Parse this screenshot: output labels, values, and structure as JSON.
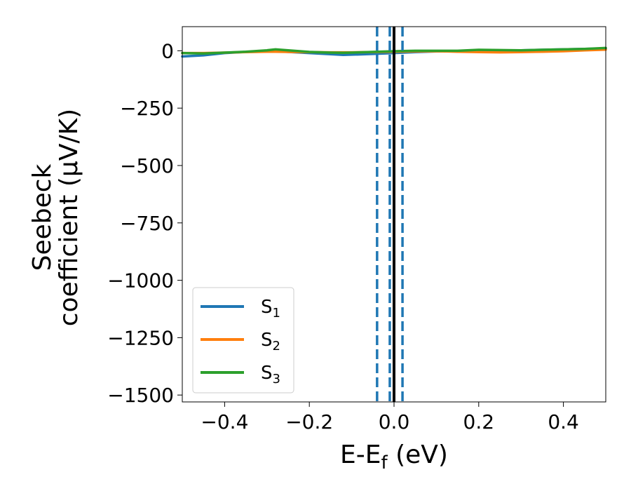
{
  "chart_data": {
    "type": "line",
    "xlabel": {
      "main": "E-E",
      "sub": "f",
      "tail": " (eV)"
    },
    "ylabel": {
      "line1": "Seebeck",
      "line2": "coefficient  (μV/K)"
    },
    "xlim": [
      -0.5,
      0.5
    ],
    "ylim": [
      -1530,
      105
    ],
    "xticks": [
      -0.4,
      -0.2,
      0.0,
      0.2,
      0.4
    ],
    "xtick_labels": [
      "−0.4",
      "−0.2",
      "0.0",
      "0.2",
      "0.4"
    ],
    "yticks": [
      0,
      -250,
      -500,
      -750,
      -1000,
      -1250,
      -1500
    ],
    "ytick_labels": [
      "0",
      "−250",
      "−500",
      "−750",
      "−1000",
      "−1250",
      "−1500"
    ],
    "grid": false,
    "legend_position": "bottom-left",
    "x": [
      -0.5,
      -0.45,
      -0.4,
      -0.35,
      -0.3,
      -0.28,
      -0.25,
      -0.2,
      -0.15,
      -0.12,
      -0.1,
      -0.05,
      0.0,
      0.05,
      0.1,
      0.15,
      0.2,
      0.25,
      0.3,
      0.35,
      0.4,
      0.45,
      0.5
    ],
    "series": [
      {
        "name_main": "S",
        "name_sub": "1",
        "color": "#1f77b4",
        "values": [
          -25,
          -20,
          -10,
          -5,
          -2,
          -1,
          -5,
          -10,
          -15,
          -18,
          -17,
          -14,
          -10,
          -6,
          -3,
          -2,
          -1,
          -1,
          2,
          4,
          6,
          8,
          10
        ]
      },
      {
        "name_main": "S",
        "name_sub": "2",
        "color": "#ff7f0e",
        "values": [
          -10,
          -10,
          -8,
          -6,
          -4,
          -4,
          -5,
          -6,
          -7,
          -7,
          -7,
          -6,
          -4,
          -3,
          -2,
          -4,
          -6,
          -7,
          -6,
          -4,
          -2,
          2,
          5
        ]
      },
      {
        "name_main": "S",
        "name_sub": "3",
        "color": "#2ca02c",
        "values": [
          -10,
          -12,
          -8,
          -4,
          2,
          6,
          2,
          -5,
          -8,
          -9,
          -8,
          -5,
          -2,
          0,
          0,
          0,
          4,
          3,
          2,
          4,
          6,
          8,
          12
        ]
      }
    ],
    "vlines": [
      {
        "x": -0.04,
        "style": "dashed",
        "color": "#1f77b4"
      },
      {
        "x": -0.01,
        "style": "dashed",
        "color": "#1f77b4"
      },
      {
        "x": 0.0,
        "style": "solid",
        "color": "#000000"
      },
      {
        "x": 0.02,
        "style": "dashed",
        "color": "#1f77b4"
      }
    ]
  }
}
